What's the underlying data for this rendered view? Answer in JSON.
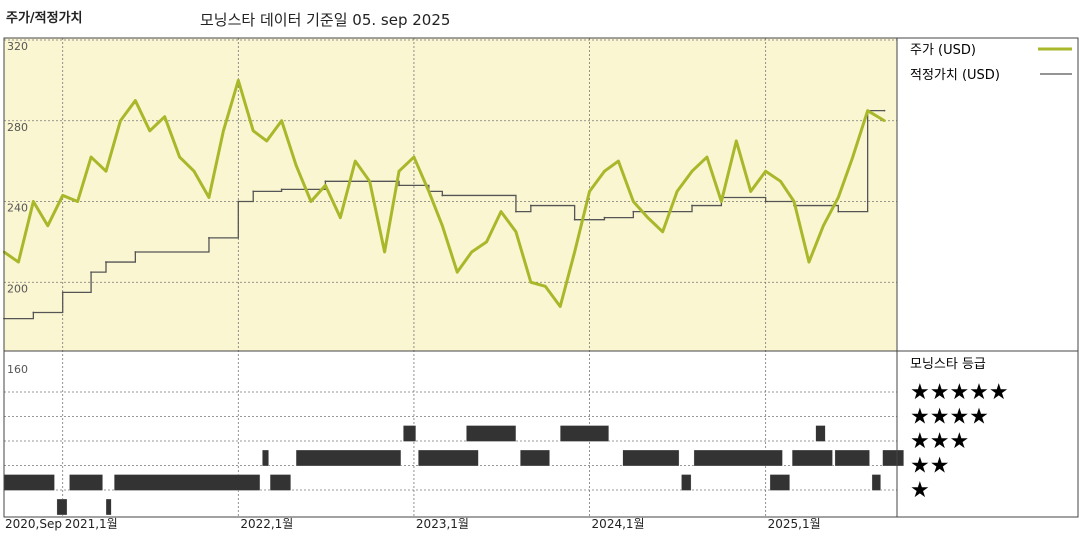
{
  "header": {
    "title": "주가/적정가치",
    "subtitle": "모닝스타 데이터 기준일 05. sep 2025"
  },
  "legend": {
    "price": "주가 (USD)",
    "fair_value": "적정가치 (USD)",
    "rating_title": "모닝스타 등급"
  },
  "colors": {
    "price": "#a8b82a",
    "fair_value": "#555555",
    "band": "#faf6d2",
    "rating_bar": "#333333"
  },
  "chart_data": [
    {
      "type": "line",
      "title": "주가/적정가치",
      "subtitle": "모닝스타 데이터 기준일 05. sep 2025",
      "ylim": [
        160,
        320
      ],
      "yticks": [
        "320",
        "280",
        "240",
        "200",
        "160"
      ],
      "xlim": [
        "2020-09-01",
        "2025-10-01"
      ],
      "xticks": [
        {
          "label": "2020,Sep",
          "date": "2020-09-01"
        },
        {
          "label": "2021,1월",
          "date": "2021-01-01"
        },
        {
          "label": "2022,1월",
          "date": "2022-01-01"
        },
        {
          "label": "2023,1월",
          "date": "2023-01-01"
        },
        {
          "label": "2024,1월",
          "date": "2024-01-01"
        },
        {
          "label": "2025,1월",
          "date": "2025-01-01"
        }
      ],
      "grid": true,
      "legend_position": "right",
      "series": [
        {
          "name": "주가 (USD)",
          "points": [
            [
              "2020-09-01",
              215
            ],
            [
              "2020-10-01",
              210
            ],
            [
              "2020-11-01",
              240
            ],
            [
              "2020-12-01",
              228
            ],
            [
              "2021-01-01",
              243
            ],
            [
              "2021-02-01",
              240
            ],
            [
              "2021-03-01",
              262
            ],
            [
              "2021-04-01",
              255
            ],
            [
              "2021-05-01",
              280
            ],
            [
              "2021-06-01",
              290
            ],
            [
              "2021-07-01",
              275
            ],
            [
              "2021-08-01",
              282
            ],
            [
              "2021-09-01",
              262
            ],
            [
              "2021-10-01",
              255
            ],
            [
              "2021-11-01",
              242
            ],
            [
              "2021-12-01",
              275
            ],
            [
              "2022-01-01",
              300
            ],
            [
              "2022-02-01",
              275
            ],
            [
              "2022-03-01",
              270
            ],
            [
              "2022-04-01",
              280
            ],
            [
              "2022-05-01",
              258
            ],
            [
              "2022-06-01",
              240
            ],
            [
              "2022-07-01",
              248
            ],
            [
              "2022-08-01",
              232
            ],
            [
              "2022-09-01",
              260
            ],
            [
              "2022-10-01",
              250
            ],
            [
              "2022-11-01",
              215
            ],
            [
              "2022-12-01",
              255
            ],
            [
              "2023-01-01",
              262
            ],
            [
              "2023-02-01",
              245
            ],
            [
              "2023-03-01",
              228
            ],
            [
              "2023-04-01",
              205
            ],
            [
              "2023-05-01",
              215
            ],
            [
              "2023-06-01",
              220
            ],
            [
              "2023-07-01",
              235
            ],
            [
              "2023-08-01",
              225
            ],
            [
              "2023-09-01",
              200
            ],
            [
              "2023-10-01",
              198
            ],
            [
              "2023-11-01",
              188
            ],
            [
              "2023-12-01",
              215
            ],
            [
              "2024-01-01",
              245
            ],
            [
              "2024-02-01",
              255
            ],
            [
              "2024-03-01",
              260
            ],
            [
              "2024-04-01",
              240
            ],
            [
              "2024-05-01",
              232
            ],
            [
              "2024-06-01",
              225
            ],
            [
              "2024-07-01",
              245
            ],
            [
              "2024-08-01",
              255
            ],
            [
              "2024-09-01",
              262
            ],
            [
              "2024-10-01",
              240
            ],
            [
              "2024-11-01",
              270
            ],
            [
              "2024-12-01",
              245
            ],
            [
              "2025-01-01",
              255
            ],
            [
              "2025-02-01",
              250
            ],
            [
              "2025-03-01",
              240
            ],
            [
              "2025-04-01",
              210
            ],
            [
              "2025-05-01",
              228
            ],
            [
              "2025-06-01",
              242
            ],
            [
              "2025-07-01",
              262
            ],
            [
              "2025-08-01",
              285
            ],
            [
              "2025-09-05",
              280
            ]
          ]
        },
        {
          "name": "적정가치 (USD)",
          "points": [
            [
              "2020-09-01",
              182
            ],
            [
              "2020-11-01",
              185
            ],
            [
              "2021-01-01",
              195
            ],
            [
              "2021-03-01",
              205
            ],
            [
              "2021-04-01",
              210
            ],
            [
              "2021-06-01",
              215
            ],
            [
              "2021-11-01",
              222
            ],
            [
              "2022-01-01",
              240
            ],
            [
              "2022-02-01",
              245
            ],
            [
              "2022-04-01",
              246
            ],
            [
              "2022-07-01",
              250
            ],
            [
              "2022-12-01",
              248
            ],
            [
              "2023-02-01",
              245
            ],
            [
              "2023-03-01",
              243
            ],
            [
              "2023-08-01",
              235
            ],
            [
              "2023-09-01",
              238
            ],
            [
              "2023-12-01",
              231
            ],
            [
              "2024-02-01",
              232
            ],
            [
              "2024-04-01",
              235
            ],
            [
              "2024-08-01",
              238
            ],
            [
              "2024-10-01",
              242
            ],
            [
              "2025-01-01",
              240
            ],
            [
              "2025-03-01",
              238
            ],
            [
              "2025-06-01",
              235
            ],
            [
              "2025-08-01",
              285
            ],
            [
              "2025-09-05",
              285
            ]
          ]
        }
      ]
    },
    {
      "type": "heatmap",
      "title": "모닝스타 등급",
      "levels": [
        "★★★★★",
        "★★★★",
        "★★★",
        "★★",
        "★"
      ],
      "segments": [
        {
          "stars": 2,
          "start": "2020-09-01",
          "end": "2020-12-15"
        },
        {
          "stars": 1,
          "start": "2020-12-20",
          "end": "2021-01-10"
        },
        {
          "stars": 2,
          "start": "2021-01-15",
          "end": "2021-03-25"
        },
        {
          "stars": 1,
          "start": "2021-04-01",
          "end": "2021-04-12"
        },
        {
          "stars": 2,
          "start": "2021-04-18",
          "end": "2022-02-15"
        },
        {
          "stars": 3,
          "start": "2022-02-20",
          "end": "2022-03-05"
        },
        {
          "stars": 2,
          "start": "2022-03-08",
          "end": "2022-04-20"
        },
        {
          "stars": 3,
          "start": "2022-05-01",
          "end": "2022-12-05"
        },
        {
          "stars": 4,
          "start": "2022-12-10",
          "end": "2023-01-05"
        },
        {
          "stars": 3,
          "start": "2023-01-10",
          "end": "2023-05-15"
        },
        {
          "stars": 4,
          "start": "2023-04-20",
          "end": "2023-08-01"
        },
        {
          "stars": 3,
          "start": "2023-08-10",
          "end": "2023-10-10"
        },
        {
          "stars": 4,
          "start": "2023-11-01",
          "end": "2024-02-10"
        },
        {
          "stars": 3,
          "start": "2024-03-10",
          "end": "2024-07-05"
        },
        {
          "stars": 2,
          "start": "2024-07-10",
          "end": "2024-07-30"
        },
        {
          "stars": 3,
          "start": "2024-08-05",
          "end": "2025-02-05"
        },
        {
          "stars": 2,
          "start": "2025-01-10",
          "end": "2025-02-20"
        },
        {
          "stars": 3,
          "start": "2025-02-25",
          "end": "2025-05-20"
        },
        {
          "stars": 4,
          "start": "2025-04-15",
          "end": "2025-05-05"
        },
        {
          "stars": 3,
          "start": "2025-05-25",
          "end": "2025-08-05"
        },
        {
          "stars": 2,
          "start": "2025-08-10",
          "end": "2025-08-28"
        },
        {
          "stars": 3,
          "start": "2025-09-01",
          "end": "2025-10-15"
        }
      ]
    }
  ]
}
